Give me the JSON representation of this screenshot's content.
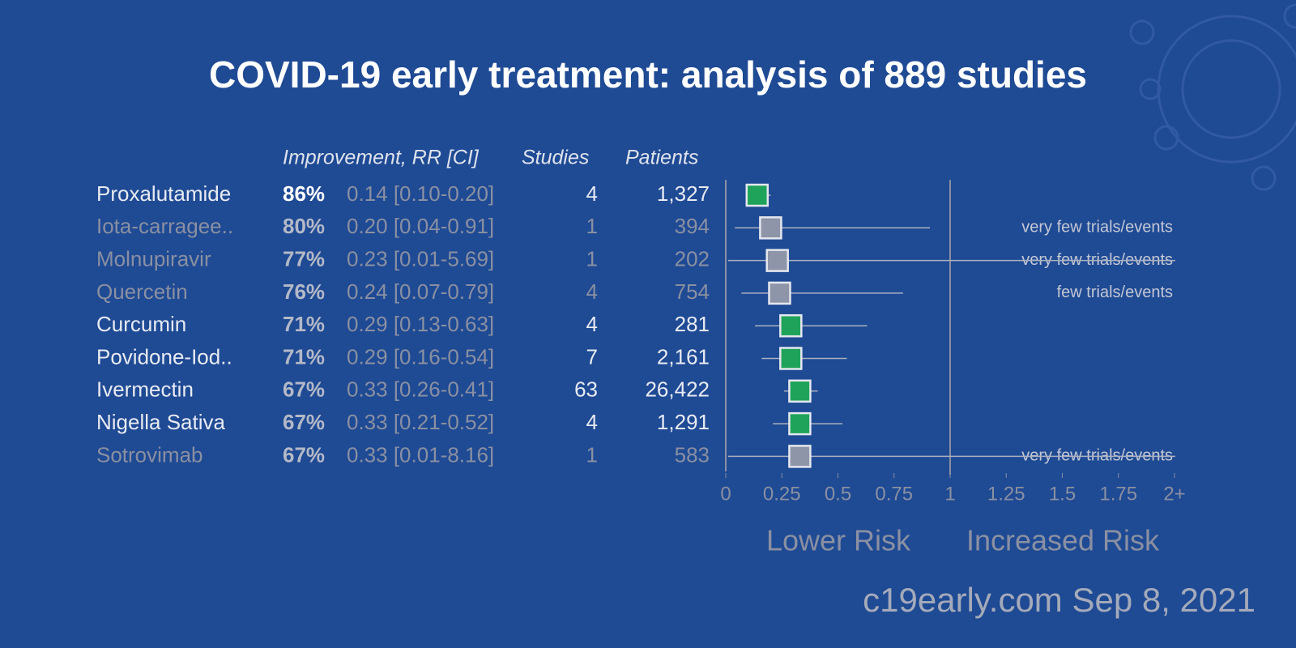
{
  "chart_data": {
    "type": "forest",
    "title": "COVID-19 early treatment: analysis of 889 studies",
    "headers": {
      "improvement": "Improvement, RR [CI]",
      "studies": "Studies",
      "patients": "Patients"
    },
    "categories": [
      "Proxalutamide",
      "Iota-carragee..",
      "Molnupiravir",
      "Quercetin",
      "Curcumin",
      "Povidone-Iod..",
      "Ivermectin",
      "Nigella Sativa",
      "Sotrovimab"
    ],
    "improvement": [
      "86%",
      "80%",
      "77%",
      "76%",
      "71%",
      "71%",
      "67%",
      "67%",
      "67%"
    ],
    "values": [
      0.14,
      0.2,
      0.23,
      0.24,
      0.29,
      0.29,
      0.33,
      0.33,
      0.33
    ],
    "value_labels": [
      "0.14 [0.10-0.20]",
      "0.20 [0.04-0.91]",
      "0.23 [0.01-5.69]",
      "0.24 [0.07-0.79]",
      "0.29 [0.13-0.63]",
      "0.29 [0.16-0.54]",
      "0.33 [0.26-0.41]",
      "0.33 [0.21-0.52]",
      "0.33 [0.01-8.16]"
    ],
    "ci_low": [
      0.1,
      0.04,
      0.01,
      0.07,
      0.13,
      0.16,
      0.26,
      0.21,
      0.01
    ],
    "ci_high": [
      0.2,
      0.91,
      5.69,
      0.79,
      0.63,
      0.54,
      0.41,
      0.52,
      8.16
    ],
    "studies": [
      4,
      1,
      1,
      4,
      4,
      7,
      63,
      4,
      1
    ],
    "patients": [
      "1,327",
      "394",
      "202",
      "754",
      "281",
      "2,161",
      "26,422",
      "1,291",
      "583"
    ],
    "notes": [
      null,
      "very few trials/events",
      "very few trials/events",
      "few trials/events",
      null,
      null,
      null,
      null,
      "very few trials/events"
    ],
    "marker_colors": [
      "#1fa35a",
      "#8f95a8",
      "#8f95a8",
      "#8f95a8",
      "#1fa35a",
      "#1fa35a",
      "#1fa35a",
      "#1fa35a",
      "#8f95a8"
    ],
    "text_colors": [
      "#e8ebf2",
      "#8a90a2",
      "#8a90a2",
      "#8a90a2",
      "#e8ebf2",
      "#e8ebf2",
      "#e8ebf2",
      "#e8ebf2",
      "#8a90a2"
    ],
    "xlim": [
      0,
      2
    ],
    "xticks": [
      0,
      0.25,
      0.5,
      0.75,
      1,
      1.25,
      1.5,
      1.75,
      {
        "value": 2,
        "label": "2+"
      }
    ],
    "reference": 1,
    "region_labels": [
      "Lower Risk",
      "Increased Risk"
    ],
    "footer": "c19early.com Sep 8, 2021"
  }
}
